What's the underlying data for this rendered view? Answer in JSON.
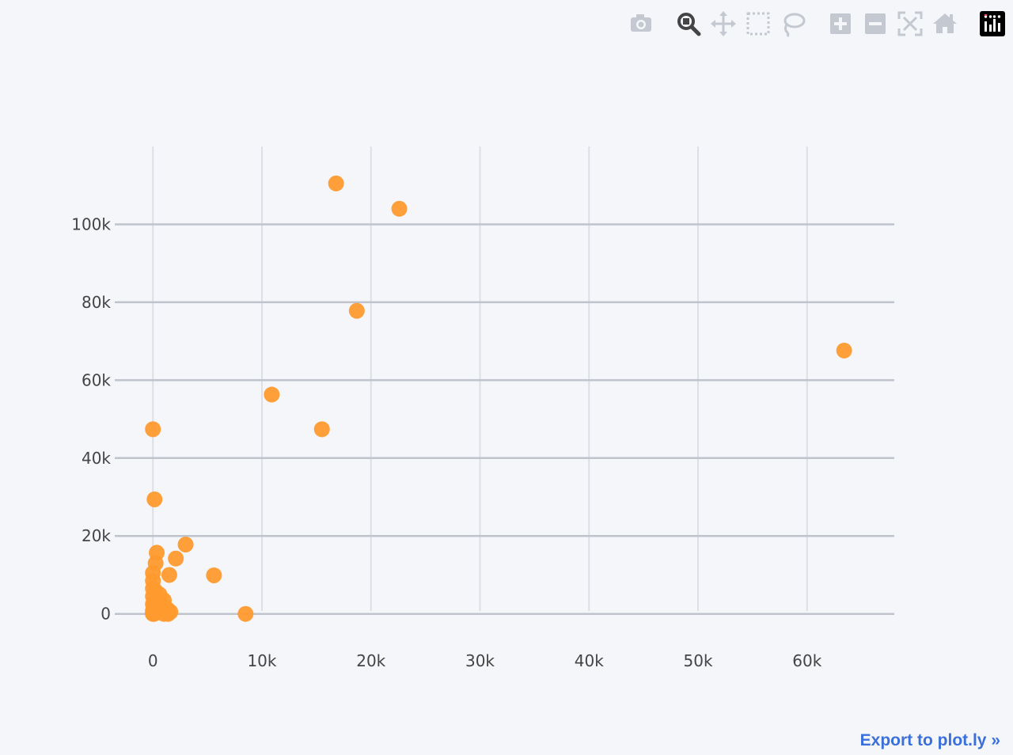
{
  "modebar": {
    "buttons": [
      {
        "name": "camera-icon",
        "title": "Download plot as a png"
      },
      {
        "name": "zoom-icon",
        "title": "Zoom"
      },
      {
        "name": "pan-icon",
        "title": "Pan"
      },
      {
        "name": "box-select-icon",
        "title": "Box Select"
      },
      {
        "name": "lasso-select-icon",
        "title": "Lasso Select"
      },
      {
        "name": "zoom-in-icon",
        "title": "Zoom in"
      },
      {
        "name": "zoom-out-icon",
        "title": "Zoom out"
      },
      {
        "name": "autoscale-icon",
        "title": "Autoscale"
      },
      {
        "name": "reset-axes-icon",
        "title": "Reset axes"
      },
      {
        "name": "plotly-logo-icon",
        "title": "Produced with Plotly"
      }
    ],
    "active_button": "zoom-icon",
    "icon_color": "#c4c8d0",
    "active_icon_color": "#444444"
  },
  "export_link": {
    "label": "Export to plot.ly »",
    "color": "#3b6fdc"
  },
  "chart_data": {
    "type": "scatter",
    "title": "",
    "xlabel": "",
    "ylabel": "",
    "xlim": [
      -3500,
      68000
    ],
    "ylim": [
      -9000,
      120000
    ],
    "x_ticks": [
      {
        "value": 0,
        "label": "0"
      },
      {
        "value": 10000,
        "label": "10k"
      },
      {
        "value": 20000,
        "label": "20k"
      },
      {
        "value": 30000,
        "label": "30k"
      },
      {
        "value": 40000,
        "label": "40k"
      },
      {
        "value": 50000,
        "label": "50k"
      },
      {
        "value": 60000,
        "label": "60k"
      }
    ],
    "y_ticks": [
      {
        "value": 0,
        "label": "0"
      },
      {
        "value": 20000,
        "label": "20k"
      },
      {
        "value": 40000,
        "label": "40k"
      },
      {
        "value": 60000,
        "label": "60k"
      },
      {
        "value": 80000,
        "label": "80k"
      },
      {
        "value": 100000,
        "label": "100k"
      }
    ],
    "grid": true,
    "legend": "none",
    "marker_color": "#ff9a2e",
    "grid_color": "#bfc3cc",
    "x_grid_color": "#dcdfe6",
    "series": [
      {
        "x": [
          16800,
          22600,
          18700,
          63400,
          10900,
          15500,
          0,
          150,
          3000,
          2100,
          350,
          250,
          1500,
          5600,
          8500,
          0,
          0,
          0,
          0,
          0,
          0,
          80,
          100,
          150,
          200,
          300,
          400,
          500,
          600,
          800,
          1000,
          1200,
          1400,
          1600,
          1400,
          1000,
          700,
          500,
          300,
          200,
          100,
          50,
          0,
          0,
          0
        ],
        "y": [
          110500,
          104000,
          77800,
          67600,
          56300,
          47400,
          47400,
          29400,
          17800,
          14200,
          15700,
          13000,
          10000,
          9900,
          0,
          10500,
          8500,
          6500,
          4500,
          2500,
          800,
          500,
          1500,
          3000,
          6000,
          2000,
          4000,
          1000,
          5000,
          2500,
          3500,
          1500,
          1000,
          500,
          0,
          0,
          1500,
          2500,
          1200,
          800,
          0,
          300,
          0,
          200,
          100
        ]
      }
    ]
  }
}
